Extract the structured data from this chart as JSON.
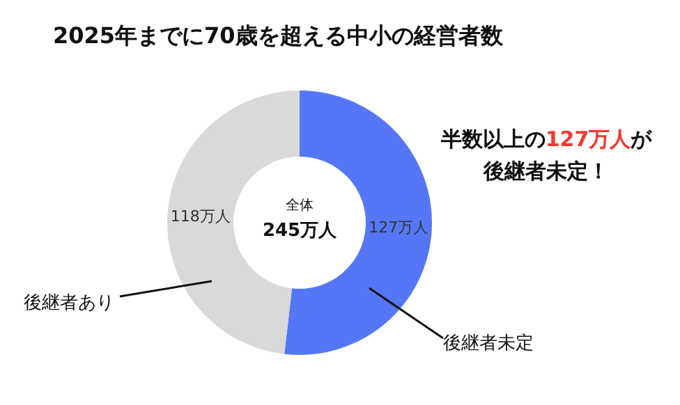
{
  "chart_data": {
    "type": "donut",
    "title": "2025年までに70歳を超える中小の経営者数",
    "categories": [
      "後継者未定",
      "後継者あり"
    ],
    "values": [
      127,
      118
    ],
    "colors": [
      "#5577f7",
      "#d9d9d9"
    ],
    "value_labels": [
      "127万人",
      "118万人"
    ],
    "annotations": [
      "全体",
      "245万人",
      "半数以上の",
      "127万人",
      "が",
      "後継者未定！"
    ],
    "legend": false
  }
}
